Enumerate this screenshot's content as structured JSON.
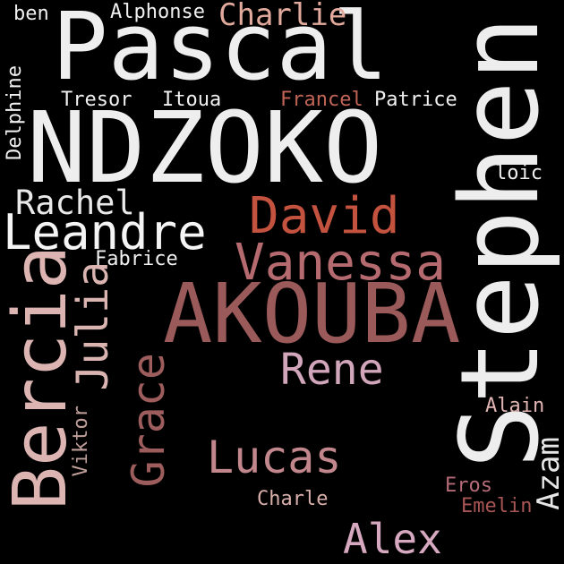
{
  "words": [
    {
      "id": "pascal",
      "text": "Pascal",
      "color": "#eeeeee"
    },
    {
      "id": "stephen",
      "text": "Stephen",
      "color": "#ededed"
    },
    {
      "id": "ndzoko",
      "text": "NDZOKO",
      "color": "#eeeeee"
    },
    {
      "id": "akouba",
      "text": "AKOUBA",
      "color": "#9b5a5a"
    },
    {
      "id": "david",
      "text": "David",
      "color": "#c3523f"
    },
    {
      "id": "leandre",
      "text": "Leandre",
      "color": "#f4f4f4"
    },
    {
      "id": "vanessa",
      "text": "Vanessa",
      "color": "#b46a6e"
    },
    {
      "id": "bercia",
      "text": "Bercia",
      "color": "#dcb5b3"
    },
    {
      "id": "julia",
      "text": "Julia",
      "color": "#d9b4b0"
    },
    {
      "id": "rachel",
      "text": "Rachel",
      "color": "#e9e9e9"
    },
    {
      "id": "rene",
      "text": "Rene",
      "color": "#d2a6ba"
    },
    {
      "id": "grace",
      "text": "Grace",
      "color": "#9e5d5d"
    },
    {
      "id": "lucas",
      "text": "Lucas",
      "color": "#c1878c"
    },
    {
      "id": "alex",
      "text": "Alex",
      "color": "#d6a9c0"
    },
    {
      "id": "charlie",
      "text": "Charlie",
      "color": "#e1aa9c"
    },
    {
      "id": "alphonse",
      "text": "Alphonse",
      "color": "#f0f0f0"
    },
    {
      "id": "ben",
      "text": "ben",
      "color": "#f0f0f0"
    },
    {
      "id": "delphine",
      "text": "Delphine",
      "color": "#f0f0f0"
    },
    {
      "id": "tresor",
      "text": "Tresor",
      "color": "#f0f0f0"
    },
    {
      "id": "itoua",
      "text": "Itoua",
      "color": "#f0f0f0"
    },
    {
      "id": "francel",
      "text": "Francel",
      "color": "#c06456"
    },
    {
      "id": "patrice",
      "text": "Patrice",
      "color": "#f0f0f0"
    },
    {
      "id": "loic",
      "text": "loic",
      "color": "#f0f0f0"
    },
    {
      "id": "fabrice",
      "text": "Fabrice",
      "color": "#f0f0f0"
    },
    {
      "id": "alain",
      "text": "Alain",
      "color": "#e0b5b3"
    },
    {
      "id": "azam",
      "text": "Azam",
      "color": "#e6e6e6"
    },
    {
      "id": "viktor",
      "text": "Viktor",
      "color": "#bf9f99"
    },
    {
      "id": "charle",
      "text": "Charle",
      "color": "#d9b0ab"
    },
    {
      "id": "eros",
      "text": "Eros",
      "color": "#b56b78"
    },
    {
      "id": "emelin",
      "text": "Emelin",
      "color": "#a85555"
    }
  ]
}
